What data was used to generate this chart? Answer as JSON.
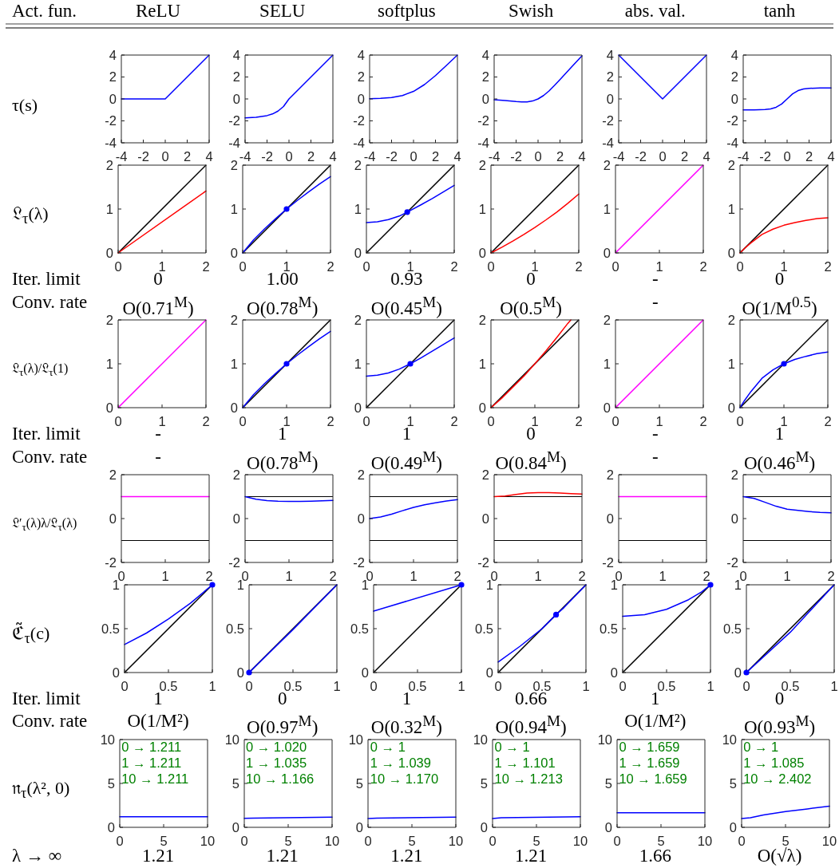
{
  "chart_data": [
    {
      "type": "other",
      "annotations": [
        "Act. fun.",
        "ReLU",
        "SELU",
        "softplus",
        "Swish",
        "abs. val.",
        "tanh",
        "Iter. limit",
        "0",
        "1.00",
        "0.93",
        "0",
        "-",
        "0",
        "Conv. rate",
        "O(0.71$^{M}$)",
        "O(0.78$^{M}$)",
        "O(0.45$^{M}$)",
        "O(0.5$^{M}$)",
        "-",
        "O(1/M$^{0.5}$)",
        "Iter. limit",
        "-",
        "1",
        "1",
        "0",
        "-",
        "1",
        "Conv. rate",
        "-",
        "O(0.78$^{M}$)",
        "O(0.49$^{M}$)",
        "O(0.84$^{M}$)",
        "-",
        "O(0.46$^{M}$)",
        "Iter. limit",
        "1",
        "0",
        "1",
        "0.66",
        "1",
        "0",
        "Conv. rate",
        "O(1/M²)",
        "O(0.97$^{M}$)",
        "O(0.32$^{M}$)",
        "O(0.94$^{M}$)",
        "O(1/M²)",
        "O(0.93$^{M}$)",
        "λ → ∞",
        "1.21",
        "1.21",
        "1.21",
        "1.21",
        "1.66",
        "O(√λ)"
      ]
    },
    {
      "type": "line",
      "ylabel": "τ(s)",
      "xlim": [
        -4,
        4
      ],
      "xticks": [
        -4,
        -2,
        0,
        2,
        4
      ],
      "ylim": [
        -4,
        4
      ],
      "yticks": [
        -4,
        -2,
        0,
        2,
        4
      ],
      "series": [
        {
          "type": "line",
          "color": "#0000ff",
          "x": [
            -4,
            0,
            4
          ],
          "values": [
            0,
            0,
            4
          ]
        }
      ]
    },
    {
      "type": "line",
      "xlim": [
        -4,
        4
      ],
      "xticks": [
        -4,
        -2,
        0,
        2,
        4
      ],
      "ylim": [
        -4,
        4
      ],
      "yticks": [
        -4,
        -2,
        0,
        2,
        4
      ],
      "series": [
        {
          "type": "line",
          "color": "#0000ff",
          "x": [
            -4,
            -3,
            -2,
            -1.5,
            -1,
            -0.5,
            0,
            4
          ],
          "values": [
            -1.73,
            -1.67,
            -1.52,
            -1.37,
            -1.11,
            -0.69,
            0,
            4
          ]
        }
      ]
    },
    {
      "type": "line",
      "xlim": [
        -4,
        4
      ],
      "xticks": [
        -4,
        -2,
        0,
        2,
        4
      ],
      "ylim": [
        -4,
        4
      ],
      "yticks": [
        -4,
        -2,
        0,
        2,
        4
      ],
      "series": [
        {
          "type": "line",
          "color": "#0000ff",
          "x": [
            -4,
            -3,
            -2,
            -1,
            0,
            1,
            2,
            3,
            4
          ],
          "values": [
            0.02,
            0.05,
            0.13,
            0.31,
            0.69,
            1.31,
            2.13,
            3.05,
            4
          ]
        }
      ]
    },
    {
      "type": "line",
      "xlim": [
        -4,
        4
      ],
      "xticks": [
        -4,
        -2,
        0,
        2,
        4
      ],
      "ylim": [
        -4,
        4
      ],
      "yticks": [
        -4,
        -2,
        0,
        2,
        4
      ],
      "series": [
        {
          "type": "line",
          "color": "#0000ff",
          "x": [
            -4,
            -3,
            -2,
            -1.5,
            -1,
            -0.5,
            0,
            0.5,
            1,
            1.5,
            2,
            3,
            4
          ],
          "values": [
            -0.07,
            -0.14,
            -0.24,
            -0.27,
            -0.27,
            -0.19,
            0,
            0.31,
            0.73,
            1.23,
            1.76,
            2.86,
            3.93
          ]
        }
      ]
    },
    {
      "type": "line",
      "xlim": [
        -4,
        4
      ],
      "xticks": [
        -4,
        -2,
        0,
        2,
        4
      ],
      "ylim": [
        -4,
        4
      ],
      "yticks": [
        -4,
        -2,
        0,
        2,
        4
      ],
      "series": [
        {
          "type": "line",
          "color": "#0000ff",
          "x": [
            -4,
            0,
            4
          ],
          "values": [
            4,
            0,
            4
          ]
        }
      ]
    },
    {
      "type": "line",
      "xlim": [
        -4,
        4
      ],
      "xticks": [
        -4,
        -2,
        0,
        2,
        4
      ],
      "ylim": [
        -4,
        4
      ],
      "yticks": [
        -4,
        -2,
        0,
        2,
        4
      ],
      "series": [
        {
          "type": "line",
          "color": "#0000ff",
          "x": [
            -4,
            -3,
            -2,
            -1.5,
            -1,
            -0.5,
            0,
            0.5,
            1,
            1.5,
            2,
            3,
            4
          ],
          "values": [
            -1,
            -1,
            -0.96,
            -0.91,
            -0.76,
            -0.46,
            0,
            0.46,
            0.76,
            0.91,
            0.96,
            1,
            1
          ]
        }
      ]
    },
    {
      "type": "line",
      "ylabel": "𝔏$_{τ}$(λ)",
      "xlim": [
        0,
        2
      ],
      "xticks": [
        0,
        1,
        2
      ],
      "ylim": [
        0,
        2
      ],
      "yticks": [
        0,
        1,
        2
      ],
      "series": [
        {
          "type": "line",
          "color": "#000000",
          "x": [
            0,
            2
          ],
          "values": [
            0,
            2
          ]
        },
        {
          "type": "line",
          "color": "#ff0000",
          "x": [
            0,
            2
          ],
          "values": [
            0,
            1.41
          ]
        }
      ]
    },
    {
      "type": "line",
      "xlim": [
        0,
        2
      ],
      "xticks": [
        0,
        1,
        2
      ],
      "ylim": [
        0,
        2
      ],
      "yticks": [
        0,
        1,
        2
      ],
      "series": [
        {
          "type": "line",
          "color": "#000000",
          "x": [
            0,
            2
          ],
          "values": [
            0,
            2
          ]
        },
        {
          "type": "line",
          "color": "#0000ff",
          "x": [
            0,
            0.25,
            0.5,
            0.75,
            1,
            1.25,
            1.5,
            1.75,
            2
          ],
          "values": [
            0,
            0.3,
            0.55,
            0.78,
            1,
            1.2,
            1.39,
            1.57,
            1.74
          ]
        },
        {
          "type": "scatter",
          "marker": "circle",
          "color": "#0000ff",
          "x": [
            1
          ],
          "values": [
            1
          ]
        }
      ]
    },
    {
      "type": "line",
      "xlim": [
        0,
        2
      ],
      "xticks": [
        0,
        1,
        2
      ],
      "ylim": [
        0,
        2
      ],
      "yticks": [
        0,
        1,
        2
      ],
      "series": [
        {
          "type": "line",
          "color": "#000000",
          "x": [
            0,
            2
          ],
          "values": [
            0,
            2
          ]
        },
        {
          "type": "line",
          "color": "#0000ff",
          "x": [
            0,
            0.25,
            0.5,
            0.75,
            0.93,
            1.25,
            1.5,
            1.75,
            2
          ],
          "values": [
            0.69,
            0.71,
            0.76,
            0.84,
            0.93,
            1.1,
            1.24,
            1.39,
            1.54
          ]
        },
        {
          "type": "scatter",
          "marker": "circle",
          "color": "#0000ff",
          "x": [
            0.93
          ],
          "values": [
            0.93
          ]
        }
      ]
    },
    {
      "type": "line",
      "xlim": [
        0,
        2
      ],
      "xticks": [
        0,
        1,
        2
      ],
      "ylim": [
        0,
        2
      ],
      "yticks": [
        0,
        1,
        2
      ],
      "series": [
        {
          "type": "line",
          "color": "#000000",
          "x": [
            0,
            2
          ],
          "values": [
            0,
            2
          ]
        },
        {
          "type": "line",
          "color": "#ff0000",
          "x": [
            0,
            0.25,
            0.5,
            0.75,
            1,
            1.25,
            1.5,
            1.75,
            2
          ],
          "values": [
            0,
            0.13,
            0.27,
            0.42,
            0.58,
            0.75,
            0.93,
            1.13,
            1.34
          ]
        }
      ]
    },
    {
      "type": "line",
      "xlim": [
        0,
        2
      ],
      "xticks": [
        0,
        1,
        2
      ],
      "ylim": [
        0,
        2
      ],
      "yticks": [
        0,
        1,
        2
      ],
      "series": [
        {
          "type": "line",
          "color": "#ff00ff",
          "x": [
            0,
            2
          ],
          "values": [
            0,
            2
          ]
        }
      ]
    },
    {
      "type": "line",
      "xlim": [
        0,
        2
      ],
      "xticks": [
        0,
        1,
        2
      ],
      "ylim": [
        0,
        2
      ],
      "yticks": [
        0,
        1,
        2
      ],
      "series": [
        {
          "type": "line",
          "color": "#000000",
          "x": [
            0,
            2
          ],
          "values": [
            0,
            2
          ]
        },
        {
          "type": "line",
          "color": "#ff0000",
          "x": [
            0,
            0.1,
            0.25,
            0.5,
            0.75,
            1,
            1.25,
            1.5,
            1.75,
            2
          ],
          "values": [
            0,
            0.1,
            0.23,
            0.42,
            0.54,
            0.63,
            0.69,
            0.74,
            0.78,
            0.8
          ]
        }
      ]
    },
    {
      "type": "line",
      "ylabel": "𝔏$_{τ}$(λ)/𝔏$_{τ}$(1)",
      "xlim": [
        0,
        2
      ],
      "xticks": [
        0,
        1,
        2
      ],
      "ylim": [
        0,
        2
      ],
      "yticks": [
        0,
        1,
        2
      ],
      "series": [
        {
          "type": "line",
          "color": "#ff00ff",
          "x": [
            0,
            2
          ],
          "values": [
            0,
            2
          ]
        }
      ]
    },
    {
      "type": "line",
      "xlim": [
        0,
        2
      ],
      "xticks": [
        0,
        1,
        2
      ],
      "ylim": [
        0,
        2
      ],
      "yticks": [
        0,
        1,
        2
      ],
      "series": [
        {
          "type": "line",
          "color": "#000000",
          "x": [
            0,
            2
          ],
          "values": [
            0,
            2
          ]
        },
        {
          "type": "line",
          "color": "#0000ff",
          "x": [
            0,
            0.25,
            0.5,
            0.75,
            1,
            1.25,
            1.5,
            1.75,
            2
          ],
          "values": [
            0,
            0.3,
            0.55,
            0.78,
            1,
            1.2,
            1.39,
            1.57,
            1.74
          ]
        },
        {
          "type": "scatter",
          "marker": "circle",
          "color": "#0000ff",
          "x": [
            1
          ],
          "values": [
            1
          ]
        }
      ]
    },
    {
      "type": "line",
      "xlim": [
        0,
        2
      ],
      "xticks": [
        0,
        1,
        2
      ],
      "ylim": [
        0,
        2
      ],
      "yticks": [
        0,
        1,
        2
      ],
      "series": [
        {
          "type": "line",
          "color": "#000000",
          "x": [
            0,
            2
          ],
          "values": [
            0,
            2
          ]
        },
        {
          "type": "line",
          "color": "#0000ff",
          "x": [
            0,
            0.25,
            0.5,
            0.75,
            1,
            1.25,
            1.5,
            1.75,
            2
          ],
          "values": [
            0.72,
            0.74,
            0.79,
            0.88,
            1,
            1.14,
            1.29,
            1.44,
            1.59
          ]
        },
        {
          "type": "scatter",
          "marker": "circle",
          "color": "#0000ff",
          "x": [
            1
          ],
          "values": [
            1
          ]
        }
      ]
    },
    {
      "type": "line",
      "xlim": [
        0,
        2
      ],
      "xticks": [
        0,
        1,
        2
      ],
      "ylim": [
        0,
        2
      ],
      "yticks": [
        0,
        1,
        2
      ],
      "series": [
        {
          "type": "line",
          "color": "#000000",
          "x": [
            0,
            2
          ],
          "values": [
            0,
            2
          ]
        },
        {
          "type": "line",
          "color": "#ff0000",
          "x": [
            0,
            0.25,
            0.5,
            0.75,
            1,
            1.25,
            1.5,
            1.75,
            1.82
          ],
          "values": [
            0,
            0.22,
            0.47,
            0.72,
            1,
            1.29,
            1.6,
            1.92,
            2
          ]
        }
      ]
    },
    {
      "type": "line",
      "xlim": [
        0,
        2
      ],
      "xticks": [
        0,
        1,
        2
      ],
      "ylim": [
        0,
        2
      ],
      "yticks": [
        0,
        1,
        2
      ],
      "series": [
        {
          "type": "line",
          "color": "#ff00ff",
          "x": [
            0,
            2
          ],
          "values": [
            0,
            2
          ]
        }
      ]
    },
    {
      "type": "line",
      "xlim": [
        0,
        2
      ],
      "xticks": [
        0,
        1,
        2
      ],
      "ylim": [
        0,
        2
      ],
      "yticks": [
        0,
        1,
        2
      ],
      "series": [
        {
          "type": "line",
          "color": "#000000",
          "x": [
            0,
            2
          ],
          "values": [
            0,
            2
          ]
        },
        {
          "type": "line",
          "color": "#0000ff",
          "x": [
            0,
            0.1,
            0.25,
            0.5,
            0.75,
            1,
            1.25,
            1.5,
            1.75,
            2
          ],
          "values": [
            0,
            0.16,
            0.37,
            0.67,
            0.86,
            1,
            1.1,
            1.17,
            1.23,
            1.27
          ]
        },
        {
          "type": "scatter",
          "marker": "circle",
          "color": "#0000ff",
          "x": [
            1
          ],
          "values": [
            1
          ]
        }
      ]
    },
    {
      "type": "line",
      "ylabel": "𝔏′$_{τ}$(λ)λ/𝔏$_{τ}$(λ)",
      "xlim": [
        0,
        2
      ],
      "xticks": [
        0,
        1,
        2
      ],
      "ylim": [
        -2,
        2
      ],
      "yticks": [
        -2,
        0,
        2
      ],
      "ref_lines": [
        {
          "axis": "y",
          "value": -1,
          "color": "#000000"
        }
      ],
      "series": [
        {
          "type": "line",
          "color": "#ff00ff",
          "x": [
            0,
            2
          ],
          "values": [
            1,
            1
          ]
        }
      ]
    },
    {
      "type": "line",
      "xlim": [
        0,
        2
      ],
      "xticks": [
        0,
        1,
        2
      ],
      "ylim": [
        -2,
        2
      ],
      "yticks": [
        -2,
        0,
        2
      ],
      "ref_lines": [
        {
          "axis": "y",
          "value": 1,
          "color": "#000000"
        },
        {
          "axis": "y",
          "value": -1,
          "color": "#000000"
        }
      ],
      "series": [
        {
          "type": "line",
          "color": "#0000ff",
          "x": [
            0,
            0.25,
            0.5,
            0.75,
            1,
            1.25,
            1.5,
            1.75,
            2
          ],
          "values": [
            1,
            0.88,
            0.82,
            0.79,
            0.78,
            0.78,
            0.79,
            0.81,
            0.83
          ]
        }
      ]
    },
    {
      "type": "line",
      "xlim": [
        0,
        2
      ],
      "xticks": [
        0,
        1,
        2
      ],
      "ylim": [
        -2,
        2
      ],
      "yticks": [
        -2,
        0,
        2
      ],
      "ref_lines": [
        {
          "axis": "y",
          "value": 1,
          "color": "#000000"
        },
        {
          "axis": "y",
          "value": -1,
          "color": "#000000"
        }
      ],
      "series": [
        {
          "type": "line",
          "color": "#0000ff",
          "x": [
            0,
            0.25,
            0.5,
            0.75,
            1,
            1.25,
            1.5,
            1.75,
            2
          ],
          "values": [
            0,
            0.07,
            0.2,
            0.36,
            0.51,
            0.63,
            0.72,
            0.8,
            0.86
          ]
        }
      ]
    },
    {
      "type": "line",
      "xlim": [
        0,
        2
      ],
      "xticks": [
        0,
        1,
        2
      ],
      "ylim": [
        -2,
        2
      ],
      "yticks": [
        -2,
        0,
        2
      ],
      "ref_lines": [
        {
          "axis": "y",
          "value": 1,
          "color": "#000000"
        },
        {
          "axis": "y",
          "value": -1,
          "color": "#000000"
        }
      ],
      "series": [
        {
          "type": "line",
          "color": "#ff0000",
          "x": [
            0,
            0.25,
            0.5,
            0.75,
            1,
            1.25,
            1.5,
            1.75,
            2
          ],
          "values": [
            1,
            1.03,
            1.1,
            1.16,
            1.18,
            1.18,
            1.16,
            1.14,
            1.12
          ]
        }
      ]
    },
    {
      "type": "line",
      "xlim": [
        0,
        2
      ],
      "xticks": [
        0,
        1,
        2
      ],
      "ylim": [
        -2,
        2
      ],
      "yticks": [
        -2,
        0,
        2
      ],
      "ref_lines": [
        {
          "axis": "y",
          "value": -1,
          "color": "#000000"
        }
      ],
      "series": [
        {
          "type": "line",
          "color": "#ff00ff",
          "x": [
            0,
            2
          ],
          "values": [
            1,
            1
          ]
        }
      ]
    },
    {
      "type": "line",
      "xlim": [
        0,
        2
      ],
      "xticks": [
        0,
        1,
        2
      ],
      "ylim": [
        -2,
        2
      ],
      "yticks": [
        -2,
        0,
        2
      ],
      "ref_lines": [
        {
          "axis": "y",
          "value": 1,
          "color": "#000000"
        },
        {
          "axis": "y",
          "value": -1,
          "color": "#000000"
        }
      ],
      "series": [
        {
          "type": "line",
          "color": "#0000ff",
          "x": [
            0,
            0.25,
            0.5,
            0.75,
            1,
            1.25,
            1.5,
            1.75,
            2
          ],
          "values": [
            1,
            0.92,
            0.74,
            0.56,
            0.43,
            0.37,
            0.32,
            0.28,
            0.26
          ]
        }
      ]
    },
    {
      "type": "line",
      "ylabel": "ℭ̃$_{τ}$(c)",
      "xlim": [
        0,
        1
      ],
      "xticks": [
        0,
        0.5,
        1
      ],
      "ylim": [
        0,
        1
      ],
      "yticks": [
        0,
        0.5,
        1
      ],
      "series": [
        {
          "type": "line",
          "color": "#000000",
          "x": [
            0,
            1
          ],
          "values": [
            0,
            1
          ]
        },
        {
          "type": "line",
          "color": "#0000ff",
          "x": [
            0,
            0.25,
            0.5,
            0.75,
            1
          ],
          "values": [
            0.32,
            0.45,
            0.61,
            0.79,
            1
          ]
        },
        {
          "type": "scatter",
          "marker": "circle",
          "color": "#0000ff",
          "x": [
            1
          ],
          "values": [
            1
          ]
        }
      ]
    },
    {
      "type": "line",
      "xlim": [
        0,
        1
      ],
      "xticks": [
        0,
        0.5,
        1
      ],
      "ylim": [
        0,
        1
      ],
      "yticks": [
        0,
        0.5,
        1
      ],
      "series": [
        {
          "type": "line",
          "color": "#000000",
          "x": [
            0,
            1
          ],
          "values": [
            0,
            1
          ]
        },
        {
          "type": "line",
          "color": "#0000ff",
          "x": [
            0,
            0.5,
            1
          ],
          "values": [
            0,
            0.49,
            1
          ]
        },
        {
          "type": "scatter",
          "marker": "circle",
          "color": "#0000ff",
          "x": [
            0
          ],
          "values": [
            0
          ]
        }
      ]
    },
    {
      "type": "line",
      "xlim": [
        0,
        1
      ],
      "xticks": [
        0,
        0.5,
        1
      ],
      "ylim": [
        0,
        1
      ],
      "yticks": [
        0,
        0.5,
        1
      ],
      "series": [
        {
          "type": "line",
          "color": "#000000",
          "x": [
            0,
            1
          ],
          "values": [
            0,
            1
          ]
        },
        {
          "type": "line",
          "color": "#0000ff",
          "x": [
            0,
            1
          ],
          "values": [
            0.7,
            1
          ]
        },
        {
          "type": "scatter",
          "marker": "circle",
          "color": "#0000ff",
          "x": [
            1
          ],
          "values": [
            1
          ]
        }
      ]
    },
    {
      "type": "line",
      "xlim": [
        0,
        1
      ],
      "xticks": [
        0,
        0.5,
        1
      ],
      "ylim": [
        0,
        1
      ],
      "yticks": [
        0,
        0.5,
        1
      ],
      "series": [
        {
          "type": "line",
          "color": "#000000",
          "x": [
            0,
            1
          ],
          "values": [
            0,
            1
          ]
        },
        {
          "type": "line",
          "color": "#0000ff",
          "x": [
            0,
            0.25,
            0.5,
            0.66,
            0.75,
            1
          ],
          "values": [
            0.12,
            0.3,
            0.5,
            0.66,
            0.74,
            1
          ]
        },
        {
          "type": "scatter",
          "marker": "circle",
          "color": "#0000ff",
          "x": [
            0.66
          ],
          "values": [
            0.66
          ]
        }
      ]
    },
    {
      "type": "line",
      "xlim": [
        0,
        1
      ],
      "xticks": [
        0,
        0.5,
        1
      ],
      "ylim": [
        0,
        1
      ],
      "yticks": [
        0,
        0.5,
        1
      ],
      "series": [
        {
          "type": "line",
          "color": "#000000",
          "x": [
            0,
            1
          ],
          "values": [
            0,
            1
          ]
        },
        {
          "type": "line",
          "color": "#0000ff",
          "x": [
            0,
            0.25,
            0.5,
            0.75,
            0.9,
            1
          ],
          "values": [
            0.64,
            0.66,
            0.72,
            0.83,
            0.92,
            1
          ]
        },
        {
          "type": "scatter",
          "marker": "circle",
          "color": "#0000ff",
          "x": [
            1
          ],
          "values": [
            1
          ]
        }
      ]
    },
    {
      "type": "line",
      "xlim": [
        0,
        1
      ],
      "xticks": [
        0,
        0.5,
        1
      ],
      "ylim": [
        0,
        1
      ],
      "yticks": [
        0,
        0.5,
        1
      ],
      "series": [
        {
          "type": "line",
          "color": "#000000",
          "x": [
            0,
            1
          ],
          "values": [
            0,
            1
          ]
        },
        {
          "type": "line",
          "color": "#0000ff",
          "x": [
            0,
            0.5,
            1
          ],
          "values": [
            0,
            0.46,
            1
          ]
        },
        {
          "type": "scatter",
          "marker": "circle",
          "color": "#0000ff",
          "x": [
            0
          ],
          "values": [
            0
          ]
        }
      ]
    },
    {
      "type": "line",
      "ylabel": "𝔫$_{τ}$(λ², 0)",
      "xlim": [
        0,
        10
      ],
      "xticks": [
        0,
        5,
        10
      ],
      "ylim": [
        0,
        10
      ],
      "yticks": [
        0,
        5,
        10
      ],
      "annotations": [
        "0 → 1.211",
        "1 → 1.211",
        "10 → 1.211"
      ],
      "series": [
        {
          "type": "line",
          "color": "#0000ff",
          "x": [
            0,
            10
          ],
          "values": [
            1.211,
            1.211
          ]
        }
      ]
    },
    {
      "type": "line",
      "xlim": [
        0,
        10
      ],
      "xticks": [
        0,
        5,
        10
      ],
      "ylim": [
        0,
        10
      ],
      "yticks": [
        0,
        5,
        10
      ],
      "annotations": [
        "0 → 1.020",
        "1 → 1.035",
        "10 → 1.166"
      ],
      "series": [
        {
          "type": "line",
          "color": "#0000ff",
          "x": [
            0,
            1,
            10
          ],
          "values": [
            1.02,
            1.035,
            1.166
          ]
        }
      ]
    },
    {
      "type": "line",
      "xlim": [
        0,
        10
      ],
      "xticks": [
        0,
        5,
        10
      ],
      "ylim": [
        0,
        10
      ],
      "yticks": [
        0,
        5,
        10
      ],
      "annotations": [
        "0 → 1",
        "1 → 1.039",
        "10 → 1.170"
      ],
      "series": [
        {
          "type": "line",
          "color": "#0000ff",
          "x": [
            0,
            1,
            10
          ],
          "values": [
            1,
            1.039,
            1.17
          ]
        }
      ]
    },
    {
      "type": "line",
      "xlim": [
        0,
        10
      ],
      "xticks": [
        0,
        5,
        10
      ],
      "ylim": [
        0,
        10
      ],
      "yticks": [
        0,
        5,
        10
      ],
      "annotations": [
        "0 → 1",
        "1 → 1.101",
        "10 → 1.213"
      ],
      "series": [
        {
          "type": "line",
          "color": "#0000ff",
          "x": [
            0,
            1,
            10
          ],
          "values": [
            1,
            1.101,
            1.213
          ]
        }
      ]
    },
    {
      "type": "line",
      "xlim": [
        0,
        10
      ],
      "xticks": [
        0,
        5,
        10
      ],
      "ylim": [
        0,
        10
      ],
      "yticks": [
        0,
        5,
        10
      ],
      "annotations": [
        "0 → 1.659",
        "1 → 1.659",
        "10 → 1.659"
      ],
      "series": [
        {
          "type": "line",
          "color": "#0000ff",
          "x": [
            0,
            10
          ],
          "values": [
            1.659,
            1.659
          ]
        }
      ]
    },
    {
      "type": "line",
      "xlim": [
        0,
        10
      ],
      "xticks": [
        0,
        5,
        10
      ],
      "ylim": [
        0,
        10
      ],
      "yticks": [
        0,
        5,
        10
      ],
      "annotations": [
        "0 → 1",
        "1 → 1.085",
        "10 → 2.402"
      ],
      "series": [
        {
          "type": "line",
          "color": "#0000ff",
          "x": [
            0,
            1,
            2.5,
            5,
            7.5,
            10
          ],
          "values": [
            1,
            1.085,
            1.4,
            1.8,
            2.1,
            2.402
          ]
        }
      ]
    }
  ]
}
